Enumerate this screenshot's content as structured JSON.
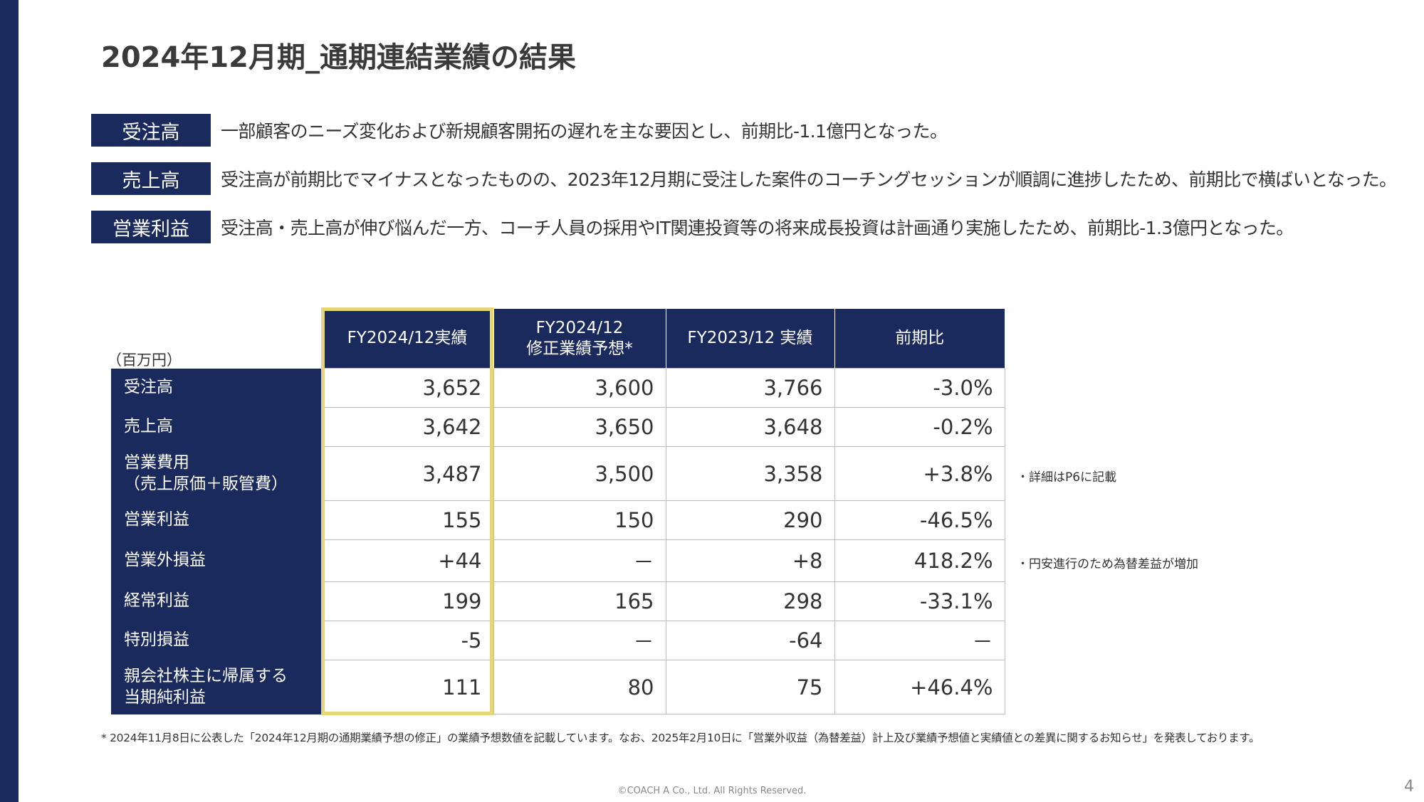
{
  "title": "2024年12月期_通期連結業績の結果",
  "summary": [
    {
      "tag": "受注高",
      "text": "一部顧客のニーズ変化および新規顧客開拓の遅れを主な要因とし、前期比-1.1億円となった。"
    },
    {
      "tag": "売上高",
      "text": "受注高が前期比でマイナスとなったものの、2023年12月期に受注した案件のコーチングセッションが順調に進捗したため、前期比で横ばいとなった。"
    },
    {
      "tag": "営業利益",
      "text": "受注高・売上高が伸び悩んだ一方、コーチ人員の採用やIT関連投資等の将来成長投資は計画通り実施したため、前期比-1.3億円となった。"
    }
  ],
  "table": {
    "unit": "（百万円）",
    "headers": [
      "FY2024/12実績",
      "FY2024/12\n修正業績予想*",
      "FY2023/12 実績",
      "前期比"
    ],
    "rows": [
      {
        "label": "受注高",
        "actual": "3,652",
        "forecast": "3,600",
        "prior": "3,766",
        "yoy": "-3.0%"
      },
      {
        "label": "売上高",
        "actual": "3,642",
        "forecast": "3,650",
        "prior": "3,648",
        "yoy": "-0.2%"
      },
      {
        "label": "営業費用\n（売上原価＋販管費）",
        "actual": "3,487",
        "forecast": "3,500",
        "prior": "3,358",
        "yoy": "+3.8%"
      },
      {
        "label": "営業利益",
        "actual": "155",
        "forecast": "150",
        "prior": "290",
        "yoy": "-46.5%"
      },
      {
        "label": "営業外損益",
        "actual": "+44",
        "forecast": "－",
        "prior": "+8",
        "yoy": "418.2%"
      },
      {
        "label": "経常利益",
        "actual": "199",
        "forecast": "165",
        "prior": "298",
        "yoy": "-33.1%"
      },
      {
        "label": "特別損益",
        "actual": "-5",
        "forecast": "－",
        "prior": "-64",
        "yoy": "－"
      },
      {
        "label": "親会社株主に帰属する\n当期純利益",
        "actual": "111",
        "forecast": "80",
        "prior": "75",
        "yoy": "+46.4%"
      }
    ]
  },
  "notes": {
    "operating_expenses": "・詳細はP6に記載",
    "non_operating": "・円安進行のため為替差益が増加"
  },
  "footnote": "* 2024年11月8日に公表した「2024年12月期の通期業績予想の修正」の業績予想数値を記載しています。なお、2025年2月10日に「営業外収益（為替差益）計上及び業績予想値と実績値との差異に関するお知らせ」を発表しております。",
  "footer": {
    "copyright": "©COACH A Co., Ltd. All Rights Reserved.",
    "page_number": "4"
  },
  "colors": {
    "navy": "#1b2a5c",
    "highlight": "#e5d67a"
  }
}
